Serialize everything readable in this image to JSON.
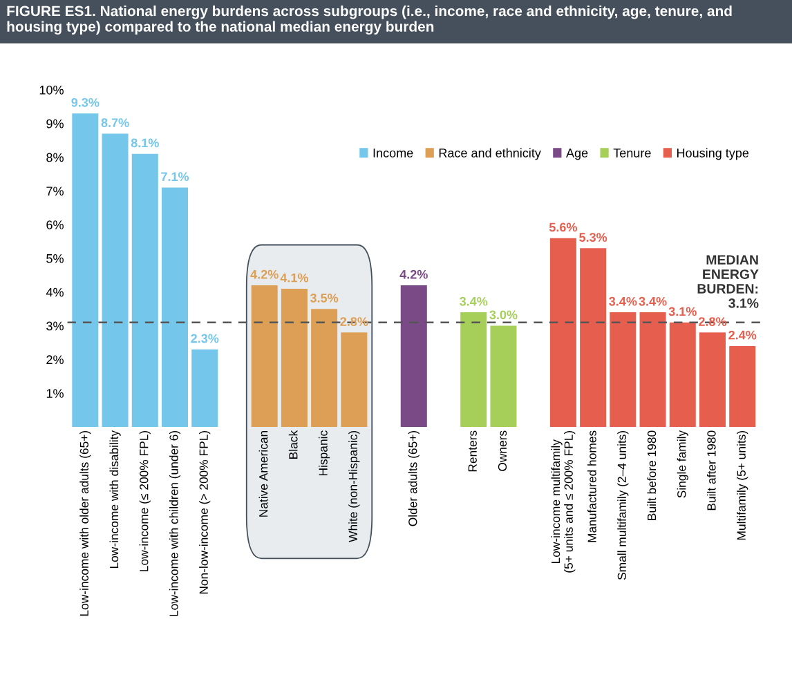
{
  "chart_data": {
    "type": "bar",
    "title": "FIGURE ES1. National energy burdens across subgroups (i.e., income, race and ethnicity, age, tenure, and housing type) compared to the national median energy burden",
    "categories": [
      "Low-income with older adults (65+)",
      "Low-income with disability",
      "Low-income (≤ 200% FPL)",
      "Low-income with children (under 6)",
      "Non-low-income (> 200% FPL)",
      null,
      "Native American",
      "Black",
      "Hispanic",
      "White (non-Hispanic)",
      null,
      "Older adults (65+)",
      null,
      "Renters",
      "Owners",
      null,
      "Low-income multifamily\n(5+ units and ≤ 200% FPL)",
      "Manufactured homes",
      "Small multifamily (2–4 units)",
      "Built before 1980",
      "Single family",
      "Built after 1980",
      "Multifamily (5+ units)"
    ],
    "series": [
      {
        "name": "Income",
        "color": "#74c7ea",
        "values": [
          9.3,
          8.7,
          8.1,
          7.1,
          2.3,
          null,
          null,
          null,
          null,
          null,
          null,
          null,
          null,
          null,
          null,
          null,
          null,
          null,
          null,
          null,
          null,
          null,
          null
        ],
        "value_labels": [
          "9.3%",
          "8.7%",
          "8.1%",
          "7.1%",
          "2.3%",
          null,
          null,
          null,
          null,
          null,
          null,
          null,
          null,
          null,
          null,
          null,
          null,
          null,
          null,
          null,
          null,
          null,
          null
        ]
      },
      {
        "name": "Race and ethnicity",
        "color": "#dd9f55",
        "values": [
          null,
          null,
          null,
          null,
          null,
          null,
          4.2,
          4.1,
          3.5,
          2.8,
          null,
          null,
          null,
          null,
          null,
          null,
          null,
          null,
          null,
          null,
          null,
          null,
          null
        ],
        "value_labels": [
          null,
          null,
          null,
          null,
          null,
          null,
          "4.2%",
          "4.1%",
          "3.5%",
          "2.8%",
          null,
          null,
          null,
          null,
          null,
          null,
          null,
          null,
          null,
          null,
          null,
          null,
          null
        ]
      },
      {
        "name": "Age",
        "color": "#7a4a87",
        "values": [
          null,
          null,
          null,
          null,
          null,
          null,
          null,
          null,
          null,
          null,
          null,
          4.2,
          null,
          null,
          null,
          null,
          null,
          null,
          null,
          null,
          null,
          null,
          null
        ],
        "value_labels": [
          null,
          null,
          null,
          null,
          null,
          null,
          null,
          null,
          null,
          null,
          null,
          "4.2%",
          null,
          null,
          null,
          null,
          null,
          null,
          null,
          null,
          null,
          null,
          null
        ]
      },
      {
        "name": "Tenure",
        "color": "#a6cf5a",
        "values": [
          null,
          null,
          null,
          null,
          null,
          null,
          null,
          null,
          null,
          null,
          null,
          null,
          null,
          3.4,
          3.0,
          null,
          null,
          null,
          null,
          null,
          null,
          null,
          null
        ],
        "value_labels": [
          null,
          null,
          null,
          null,
          null,
          null,
          null,
          null,
          null,
          null,
          null,
          null,
          null,
          "3.4%",
          "3.0%",
          null,
          null,
          null,
          null,
          null,
          null,
          null,
          null
        ]
      },
      {
        "name": "Housing type",
        "color": "#e65f4e",
        "values": [
          null,
          null,
          null,
          null,
          null,
          null,
          null,
          null,
          null,
          null,
          null,
          null,
          null,
          null,
          null,
          null,
          5.6,
          5.3,
          3.4,
          3.4,
          3.1,
          2.8,
          2.4
        ],
        "value_labels": [
          null,
          null,
          null,
          null,
          null,
          null,
          null,
          null,
          null,
          null,
          null,
          null,
          null,
          null,
          null,
          null,
          "5.6%",
          "5.3%",
          "3.4%",
          "3.4%",
          "3.1%",
          "2.8%",
          "2.4%"
        ]
      }
    ],
    "ylim": [
      0,
      10
    ],
    "yticks": [
      {
        "value": 1,
        "label": "1%"
      },
      {
        "value": 2,
        "label": "2%"
      },
      {
        "value": 3,
        "label": "3%"
      },
      {
        "value": 4,
        "label": "4%"
      },
      {
        "value": 5,
        "label": "5%"
      },
      {
        "value": 6,
        "label": "6%"
      },
      {
        "value": 7,
        "label": "7%"
      },
      {
        "value": 8,
        "label": "8%"
      },
      {
        "value": 9,
        "label": "9%"
      },
      {
        "value": 10,
        "label": "10%"
      }
    ],
    "ref_lines": [
      {
        "axis": "y",
        "value": 3.1,
        "label": "MEDIAN\nENERGY\nBURDEN:\n3.1%",
        "color": "#555555",
        "line_style": "dashed"
      }
    ],
    "legend": "top right",
    "grid": false
  }
}
